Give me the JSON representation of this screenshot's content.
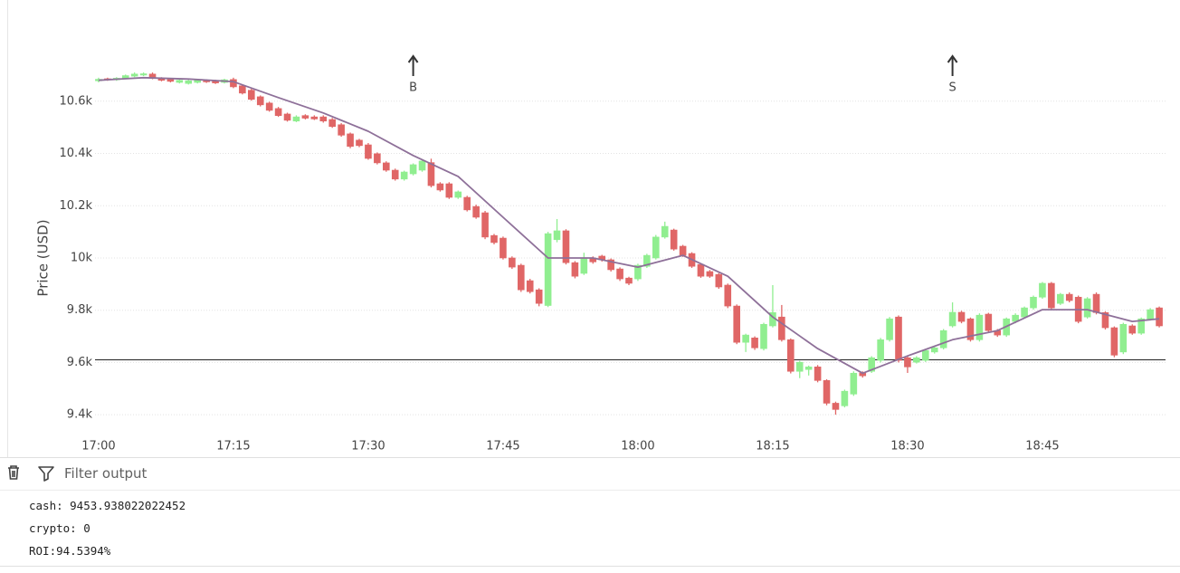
{
  "chart_data": {
    "type": "candlestick",
    "y_label": "Price (USD)",
    "x": [
      "17:00",
      "17:01",
      "17:02",
      "17:03",
      "17:04",
      "17:05",
      "17:06",
      "17:07",
      "17:08",
      "17:09",
      "17:10",
      "17:11",
      "17:12",
      "17:13",
      "17:14",
      "17:15",
      "17:16",
      "17:17",
      "17:18",
      "17:19",
      "17:20",
      "17:21",
      "17:22",
      "17:23",
      "17:24",
      "17:25",
      "17:26",
      "17:27",
      "17:28",
      "17:29",
      "17:30",
      "17:31",
      "17:32",
      "17:33",
      "17:34",
      "17:35",
      "17:36",
      "17:37",
      "17:38",
      "17:39",
      "17:40",
      "17:41",
      "17:42",
      "17:43",
      "17:44",
      "17:45",
      "17:46",
      "17:47",
      "17:48",
      "17:49",
      "17:50",
      "17:51",
      "17:52",
      "17:53",
      "17:54",
      "17:55",
      "17:56",
      "17:57",
      "17:58",
      "17:59",
      "18:00",
      "18:01",
      "18:02",
      "18:03",
      "18:04",
      "18:05",
      "18:06",
      "18:07",
      "18:08",
      "18:09",
      "18:10",
      "18:11",
      "18:12",
      "18:13",
      "18:14",
      "18:15",
      "18:16",
      "18:17",
      "18:18",
      "18:19",
      "18:20",
      "18:21",
      "18:22",
      "18:23",
      "18:24",
      "18:25",
      "18:26",
      "18:27",
      "18:28",
      "18:29",
      "18:30",
      "18:31",
      "18:32",
      "18:33",
      "18:34",
      "18:35",
      "18:36",
      "18:37",
      "18:38",
      "18:39",
      "18:40",
      "18:41",
      "18:42",
      "18:43",
      "18:44",
      "18:45",
      "18:46",
      "18:47",
      "18:48",
      "18:49",
      "18:50",
      "18:51",
      "18:52",
      "18:53",
      "18:54",
      "18:55",
      "18:56",
      "18:57",
      "18:58"
    ],
    "open": [
      10678,
      10686,
      10682,
      10688,
      10696,
      10700,
      10704,
      10688,
      10684,
      10672,
      10668,
      10672,
      10680,
      10678,
      10672,
      10683,
      10659,
      10642,
      10617,
      10593,
      10572,
      10551,
      10524,
      10545,
      10540,
      10540,
      10530,
      10510,
      10475,
      10451,
      10433,
      10399,
      10364,
      10336,
      10302,
      10322,
      10336,
      10365,
      10284,
      10284,
      10232,
      10232,
      10197,
      10173,
      10086,
      10076,
      10000,
      9972,
      9913,
      9878,
      9818,
      10070,
      10104,
      9982,
      9941,
      10000,
      10007,
      9993,
      9958,
      9923,
      9920,
      9968,
      10000,
      10080,
      10107,
      10045,
      10017,
      9975,
      9948,
      9937,
      9896,
      9816,
      9677,
      9694,
      9653,
      9740,
      9774,
      9687,
      9566,
      9573,
      9583,
      9531,
      9444,
      9434,
      9479,
      9560,
      9566,
      9608,
      9687,
      9774,
      9618,
      9601,
      9608,
      9640,
      9656,
      9740,
      9792,
      9767,
      9687,
      9785,
      9722,
      9705,
      9757,
      9774,
      9809,
      9850,
      9903,
      9826,
      9861,
      9850,
      9774,
      9861,
      9791,
      9733,
      9640,
      9740,
      9712,
      9767,
      9809
    ],
    "high": [
      10690,
      10690,
      10692,
      10702,
      10710,
      10710,
      10710,
      10692,
      10688,
      10684,
      10682,
      10684,
      10684,
      10682,
      10686,
      10690,
      10664,
      10648,
      10622,
      10598,
      10578,
      10556,
      10546,
      10550,
      10546,
      10546,
      10536,
      10516,
      10480,
      10456,
      10440,
      10404,
      10370,
      10342,
      10334,
      10362,
      10378,
      10380,
      10290,
      10290,
      10258,
      10238,
      10204,
      10180,
      10092,
      10082,
      10006,
      9978,
      9920,
      9884,
      10100,
      10149,
      10110,
      9988,
      10020,
      10006,
      10012,
      9998,
      9964,
      9928,
      9978,
      10016,
      10088,
      10139,
      10112,
      10050,
      10022,
      9980,
      9954,
      9942,
      9902,
      9822,
      9710,
      9700,
      9752,
      9896,
      9820,
      9692,
      9606,
      9588,
      9590,
      9536,
      9450,
      9496,
      9566,
      9566,
      9624,
      9694,
      9774,
      9780,
      9624,
      9624,
      9652,
      9662,
      9728,
      9830,
      9798,
      9772,
      9788,
      9790,
      9728,
      9772,
      9788,
      9814,
      9856,
      9908,
      9908,
      9866,
      9868,
      9856,
      9850,
      9868,
      9796,
      9738,
      9752,
      9746,
      9772,
      9808,
      9814
    ],
    "low": [
      10672,
      10678,
      10678,
      10684,
      10692,
      10696,
      10684,
      10676,
      10672,
      10668,
      10664,
      10668,
      10670,
      10666,
      10668,
      10650,
      10626,
      10602,
      10580,
      10560,
      10540,
      10522,
      10520,
      10530,
      10528,
      10518,
      10498,
      10464,
      10420,
      10424,
      10376,
      10358,
      10330,
      10296,
      10296,
      10316,
      10330,
      10270,
      10254,
      10226,
      10226,
      10178,
      10150,
      10072,
      10052,
      9994,
      9958,
      9870,
      9864,
      9815,
      9812,
      10060,
      9975,
      9922,
      9935,
      9978,
      9986,
      9948,
      9912,
      9896,
      9912,
      9962,
      9994,
      10074,
      10028,
      10004,
      9962,
      9924,
      9924,
      9882,
      9808,
      9670,
      9640,
      9648,
      9646,
      9734,
      9680,
      9558,
      9540,
      9550,
      9524,
      9436,
      9400,
      9428,
      9472,
      9542,
      9560,
      9600,
      9680,
      9600,
      9560,
      9596,
      9602,
      9634,
      9650,
      9734,
      9750,
      9680,
      9680,
      9716,
      9698,
      9698,
      9750,
      9768,
      9802,
      9844,
      9802,
      9820,
      9830,
      9750,
      9768,
      9784,
      9726,
      9620,
      9632,
      9706,
      9706,
      9760,
      9734
    ],
    "close": [
      10684,
      10682,
      10688,
      10698,
      10704,
      10705,
      10688,
      10680,
      10676,
      10680,
      10678,
      10680,
      10674,
      10670,
      10682,
      10655,
      10631,
      10607,
      10586,
      10565,
      10545,
      10527,
      10540,
      10535,
      10532,
      10524,
      10503,
      10470,
      10427,
      10430,
      10381,
      10364,
      10336,
      10302,
      10329,
      10357,
      10371,
      10277,
      10260,
      10232,
      10253,
      10184,
      10156,
      10080,
      10059,
      10000,
      9965,
      9878,
      9871,
      9826,
      10093,
      10104,
      9982,
      9930,
      10000,
      9985,
      9993,
      9955,
      9920,
      9903,
      9972,
      10010,
      10080,
      10121,
      10034,
      10010,
      9968,
      9930,
      9930,
      9889,
      9816,
      9677,
      9705,
      9656,
      9746,
      9791,
      9687,
      9566,
      9601,
      9583,
      9531,
      9444,
      9420,
      9490,
      9559,
      9549,
      9618,
      9687,
      9767,
      9608,
      9583,
      9618,
      9646,
      9656,
      9722,
      9792,
      9757,
      9687,
      9781,
      9722,
      9705,
      9767,
      9781,
      9809,
      9850,
      9903,
      9809,
      9861,
      9837,
      9757,
      9844,
      9791,
      9733,
      9628,
      9746,
      9712,
      9767,
      9802,
      9740
    ],
    "up_color": "#90ee90",
    "down_color": "#e06666",
    "moving_average": {
      "color": "#8e7099",
      "x": [
        "17:00",
        "17:05",
        "17:10",
        "17:15",
        "17:20",
        "17:25",
        "17:30",
        "17:35",
        "17:40",
        "17:45",
        "17:50",
        "17:55",
        "18:00",
        "18:05",
        "18:10",
        "18:15",
        "18:20",
        "18:25",
        "18:30",
        "18:35",
        "18:40",
        "18:45",
        "18:50",
        "18:55",
        "18:58"
      ],
      "values": [
        10680,
        10690,
        10685,
        10675,
        10614,
        10555,
        10485,
        10392,
        10312,
        10156,
        10000,
        10000,
        9965,
        10010,
        9930,
        9774,
        9653,
        9559,
        9625,
        9687,
        9722,
        9802,
        9802,
        9757,
        9767
      ]
    },
    "hline": {
      "value": 9610,
      "color": "#222222"
    },
    "annotations": [
      {
        "text": "B",
        "x": "17:35"
      },
      {
        "text": "S",
        "x": "18:35"
      }
    ],
    "xlim": [
      "16:59",
      "18:59"
    ],
    "xticks": [
      "17:00",
      "17:15",
      "17:30",
      "17:45",
      "18:00",
      "18:15",
      "18:30",
      "18:45"
    ],
    "ylim": [
      9300,
      10880
    ],
    "yticks": [
      {
        "value": 9400,
        "label": "9.4k"
      },
      {
        "value": 9600,
        "label": "9.6k"
      },
      {
        "value": 9800,
        "label": "9.8k"
      },
      {
        "value": 10000,
        "label": "10k"
      },
      {
        "value": 10200,
        "label": "10.2k"
      },
      {
        "value": 10400,
        "label": "10.4k"
      },
      {
        "value": 10600,
        "label": "10.6k"
      }
    ],
    "grid": true
  },
  "output": {
    "filter_placeholder": "Filter output",
    "lines": [
      "cash: 9453.938022022452",
      "crypto: 0",
      "ROI:94.5394%"
    ]
  }
}
